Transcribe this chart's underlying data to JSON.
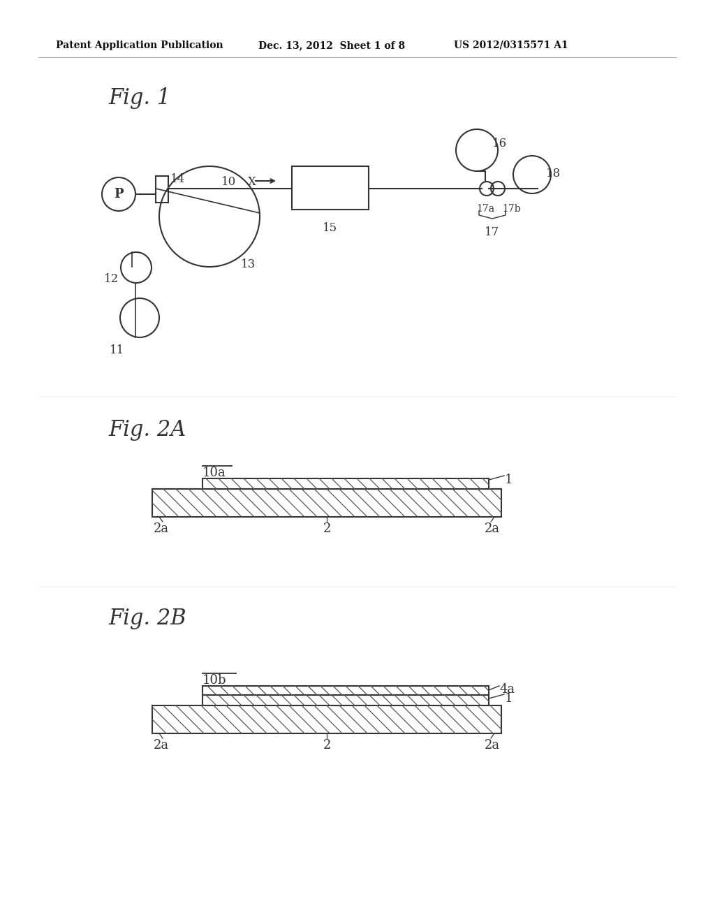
{
  "bg_color": "#ffffff",
  "header_left": "Patent Application Publication",
  "header_mid": "Dec. 13, 2012  Sheet 1 of 8",
  "header_right": "US 2012/0315571 A1",
  "fig1_label": "Fig. 1",
  "fig2a_label": "Fig. 2A",
  "fig2b_label": "Fig. 2B",
  "line_color": "#333333",
  "hatch_color": "#555555"
}
